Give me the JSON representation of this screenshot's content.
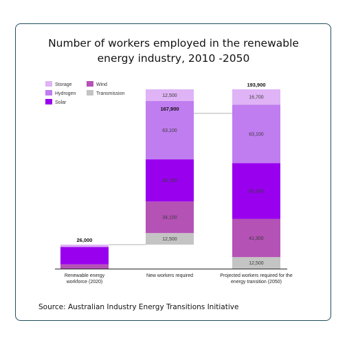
{
  "title": "Number of workers employed in the renewable\nenergy industry, 2010 -2050",
  "source": "Source: Australian Industry Energy Transitions Initiative",
  "colors": {
    "Storage": "#dfb3f5",
    "Hydrogen": "#c07df0",
    "Solar": "#9900ee",
    "Wind": "#b552b6",
    "Transmission": "#c4c4c4"
  },
  "chart_data": {
    "type": "bar",
    "stacked": true,
    "title": "Number of workers employed in the renewable energy industry, 2010 -2050",
    "categories": [
      "Renewable energy workforce (2020)",
      "New workers required",
      "Projected workers required for the energy transition (2050)"
    ],
    "category_lines": [
      [
        "Renewable energy",
        "workforce (2020)"
      ],
      [
        "New workers required"
      ],
      [
        "Projected workers required for the",
        "energy transition (2050)"
      ]
    ],
    "totals": [
      26000,
      167900,
      193900
    ],
    "total_labels": [
      "26,000",
      "167,900",
      "193,900"
    ],
    "series": [
      {
        "name": "Transmission",
        "values": [
          0,
          12500,
          12500
        ],
        "labels": [
          "",
          "12,500",
          "12,500"
        ]
      },
      {
        "name": "Wind",
        "values": [
          4700,
          34100,
          41300
        ],
        "labels": [
          "",
          "34,100",
          "41,300"
        ]
      },
      {
        "name": "Solar",
        "values": [
          18700,
          45700,
          60300
        ],
        "labels": [
          "",
          "45,700",
          "60,300"
        ]
      },
      {
        "name": "Hydrogen",
        "values": [
          0,
          63100,
          63100
        ],
        "labels": [
          "",
          "63,100",
          "63,100"
        ]
      },
      {
        "name": "Storage",
        "values": [
          2600,
          12500,
          16700
        ],
        "labels": [
          "",
          "12,500",
          "16,700"
        ]
      }
    ],
    "base_offsets": [
      0,
      26000,
      0
    ],
    "legend": {
      "position": "top-left",
      "entries": [
        "Storage",
        "Wind",
        "Hydrogen",
        "Transmission",
        "Solar"
      ]
    },
    "ylim": [
      0,
      200000
    ],
    "grid": false
  }
}
